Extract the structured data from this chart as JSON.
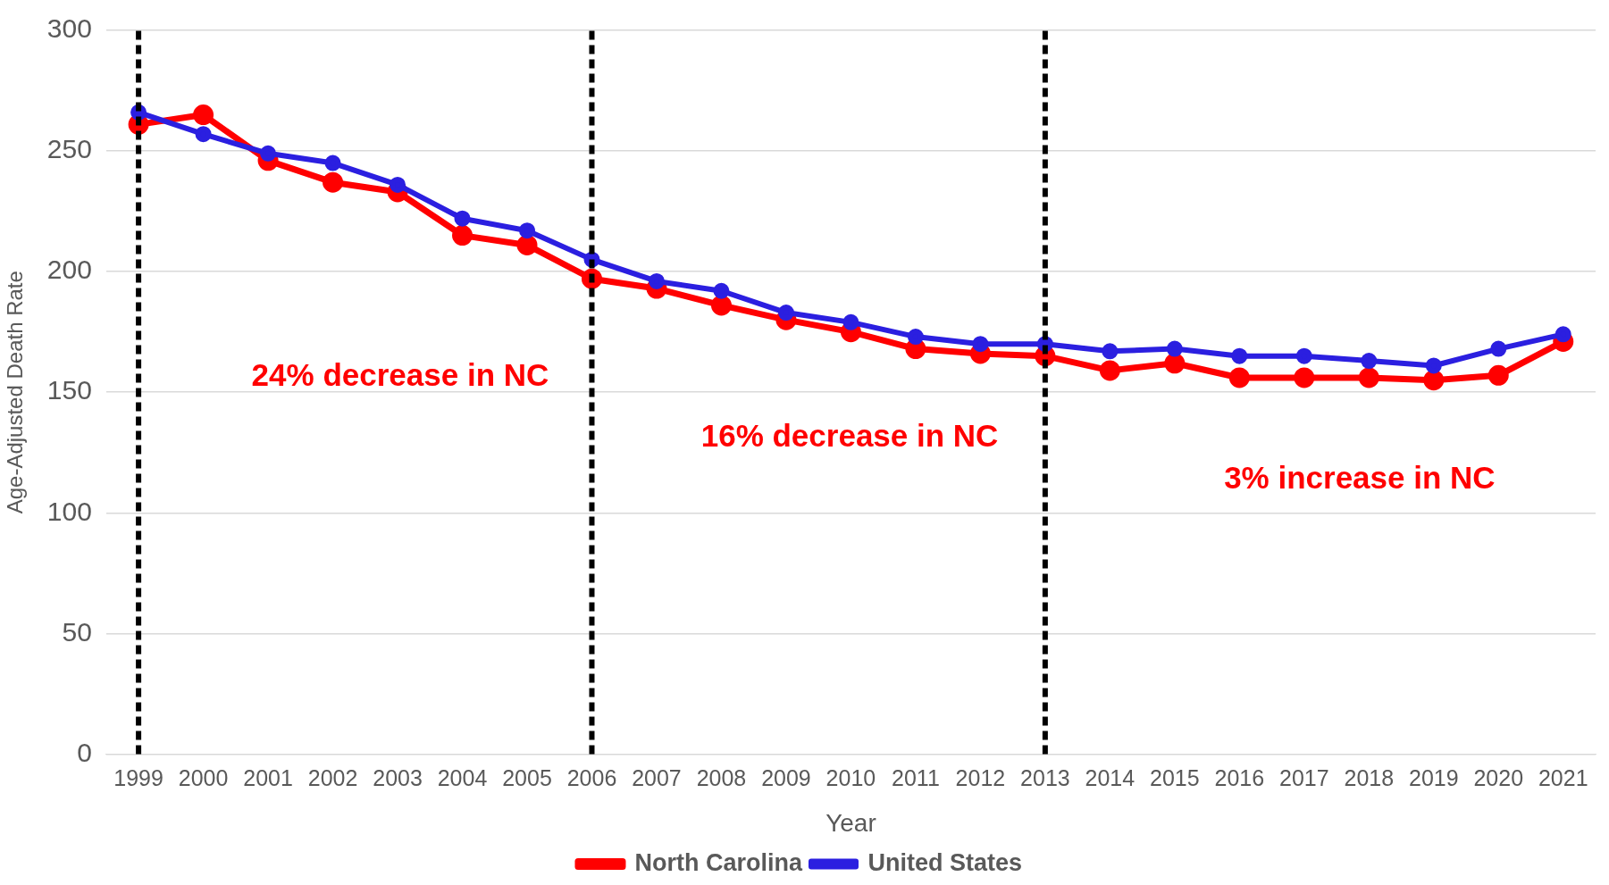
{
  "chart_data": {
    "type": "line",
    "xlabel": "Year",
    "ylabel": "Age-Adjusted Death Rate",
    "categories": [
      "1999",
      "2000",
      "2001",
      "2002",
      "2003",
      "2004",
      "2005",
      "2006",
      "2007",
      "2008",
      "2009",
      "2010",
      "2011",
      "2012",
      "2013",
      "2014",
      "2015",
      "2016",
      "2017",
      "2018",
      "2019",
      "2020",
      "2021"
    ],
    "series": [
      {
        "name": "North Carolina",
        "color": "#ff0000",
        "values": [
          261,
          265,
          246,
          237,
          233,
          215,
          211,
          197,
          193,
          186,
          180,
          175,
          168,
          166,
          165,
          159,
          162,
          156,
          156,
          156,
          155,
          157,
          171
        ]
      },
      {
        "name": "United States",
        "color": "#2b1fe0",
        "values": [
          266,
          257,
          249,
          245,
          236,
          222,
          217,
          205,
          196,
          192,
          183,
          179,
          173,
          170,
          170,
          167,
          168,
          165,
          165,
          163,
          161,
          168,
          174
        ]
      }
    ],
    "ylim": [
      0,
      300
    ],
    "yticks": [
      0,
      50,
      100,
      150,
      200,
      250,
      300
    ],
    "grid": "y",
    "legend": "bottom",
    "marker": "circle",
    "line_style": "solid",
    "ref_lines": [
      {
        "axis": "x",
        "value": "1999",
        "color": "#000000",
        "line_style": "dashed"
      },
      {
        "axis": "x",
        "value": "2006",
        "color": "#000000",
        "line_style": "dashed"
      },
      {
        "axis": "x",
        "value": "2013",
        "color": "#000000",
        "line_style": "dashed"
      }
    ],
    "annotations": [
      "24% decrease in NC",
      "16% decrease in NC",
      "3% increase in NC"
    ]
  }
}
